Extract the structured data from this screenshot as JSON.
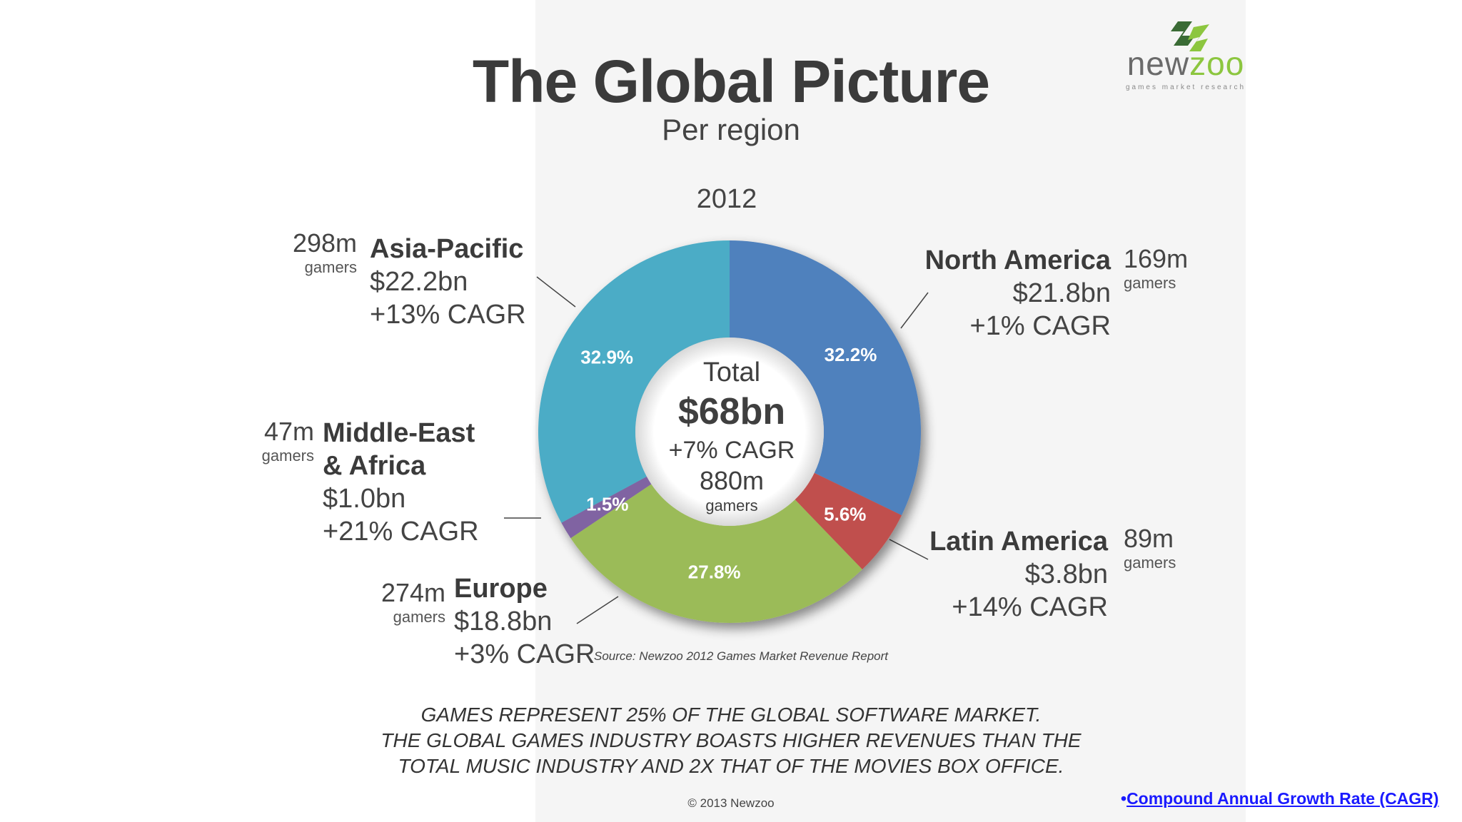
{
  "header": {
    "title": "The Global Picture",
    "subtitle": "Per region"
  },
  "logo": {
    "text_main": "new",
    "text_accent": "zoo",
    "tagline": "games market research"
  },
  "chart_data": {
    "type": "pie",
    "year": "2012",
    "donut": true,
    "slices": [
      {
        "name": "North America",
        "percent": 32.2,
        "label": "32.2%",
        "color": "#4f81bd"
      },
      {
        "name": "Latin America",
        "percent": 5.6,
        "label": "5.6%",
        "color": "#c0504d"
      },
      {
        "name": "Europe",
        "percent": 27.8,
        "label": "27.8%",
        "color": "#9bbb59"
      },
      {
        "name": "Middle-East & Africa",
        "percent": 1.5,
        "label": "1.5%",
        "color": "#8064a2"
      },
      {
        "name": "Asia-Pacific",
        "percent": 32.9,
        "label": "32.9%",
        "color": "#4bacc6"
      }
    ],
    "center": {
      "total_label": "Total",
      "total_value": "$68bn",
      "cagr": "+7% CAGR",
      "gamers": "880m",
      "gamers_label": "gamers"
    }
  },
  "regions": {
    "asia_pacific": {
      "gamers": "298m",
      "gamers_label": "gamers",
      "name": "Asia-Pacific",
      "revenue": "$22.2bn",
      "cagr": "+13% CAGR"
    },
    "north_america": {
      "gamers": "169m",
      "gamers_label": "gamers",
      "name": "North America",
      "revenue": "$21.8bn",
      "cagr": "+1% CAGR"
    },
    "mea": {
      "gamers": "47m",
      "gamers_label": "gamers",
      "name_line1": "Middle-East",
      "name_line2": "& Africa",
      "revenue": "$1.0bn",
      "cagr": "+21% CAGR"
    },
    "latin_america": {
      "gamers": "89m",
      "gamers_label": "gamers",
      "name": "Latin America",
      "revenue": "$3.8bn",
      "cagr": "+14% CAGR"
    },
    "europe": {
      "gamers": "274m",
      "gamers_label": "gamers",
      "name": "Europe",
      "revenue": "$18.8bn",
      "cagr": "+3% CAGR"
    }
  },
  "source": "Source: Newzoo 2012 Games Market Revenue Report",
  "statement": {
    "line1": "GAMES REPRESENT 25% OF THE GLOBAL SOFTWARE MARKET.",
    "line2": "THE GLOBAL GAMES INDUSTRY BOASTS HIGHER REVENUES THAN THE",
    "line3": "TOTAL MUSIC INDUSTRY AND 2X THAT OF THE MOVIES BOX OFFICE."
  },
  "copyright": "© 2013 Newzoo",
  "footnote": {
    "bullet": "•",
    "text": "Compound Annual Growth Rate (CAGR)"
  }
}
